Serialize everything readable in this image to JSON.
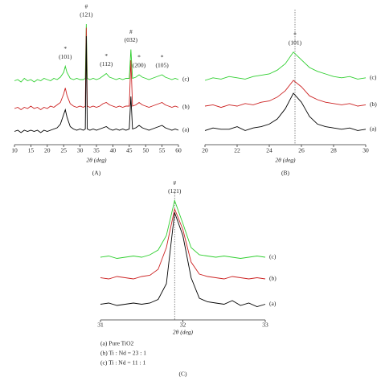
{
  "chart_data": [
    {
      "type": "line",
      "label": "(A)",
      "x_label": "2θ (deg)",
      "x": [
        10,
        11,
        12,
        13,
        14,
        15,
        16,
        17,
        18,
        19,
        20,
        21,
        22,
        23,
        24,
        25,
        25.5,
        26,
        27,
        28,
        29,
        30,
        31,
        31.6,
        31.9,
        32.2,
        33,
        34,
        35,
        36,
        37,
        38,
        39,
        40,
        41,
        42,
        43,
        44,
        45,
        45.5,
        46,
        47,
        48,
        49,
        50,
        51,
        52,
        53,
        54,
        55,
        56,
        57,
        58,
        59,
        60
      ],
      "series": [
        {
          "name": "(c)",
          "color": "#2fcf2f",
          "values": [
            53,
            54,
            52,
            55,
            53,
            54,
            52,
            54,
            53,
            55,
            54,
            53,
            55,
            54,
            56,
            60,
            65,
            60,
            55,
            54,
            55,
            54,
            54,
            55,
            100,
            55,
            54,
            55,
            54,
            55,
            57,
            59,
            56,
            55,
            54,
            55,
            54,
            55,
            55,
            79,
            55,
            56,
            58,
            56,
            55,
            54,
            55,
            56,
            57,
            58,
            56,
            55,
            54,
            55,
            54
          ]
        },
        {
          "name": "(b)",
          "color": "#cc2222",
          "values": [
            30,
            31,
            29,
            31,
            30,
            32,
            30,
            31,
            29,
            31,
            30,
            32,
            31,
            33,
            35,
            42,
            47,
            41,
            34,
            32,
            31,
            32,
            31,
            32,
            97,
            32,
            31,
            32,
            31,
            32,
            34,
            35,
            33,
            32,
            31,
            32,
            31,
            32,
            32,
            70,
            32,
            33,
            35,
            33,
            32,
            31,
            32,
            33,
            34,
            35,
            33,
            32,
            31,
            32,
            31
          ]
        },
        {
          "name": "(a)",
          "color": "#000000",
          "values": [
            11,
            12,
            10,
            12,
            11,
            12,
            11,
            12,
            10,
            12,
            11,
            12,
            13,
            14,
            17,
            25,
            29,
            23,
            15,
            13,
            12,
            13,
            12,
            13,
            90,
            13,
            12,
            13,
            12,
            13,
            14,
            15,
            13,
            12,
            13,
            12,
            13,
            12,
            13,
            40,
            13,
            14,
            16,
            14,
            13,
            12,
            13,
            14,
            15,
            16,
            14,
            13,
            12,
            13,
            12
          ]
        }
      ],
      "annotations": [
        {
          "x": 25.5,
          "marker": "*",
          "text": "(101)"
        },
        {
          "x": 31.9,
          "marker": "#",
          "text": "(121)"
        },
        {
          "x": 38,
          "marker": "*",
          "text": "(112)"
        },
        {
          "x": 45.5,
          "marker": "#",
          "text": "(032)"
        },
        {
          "x": 48,
          "marker": "*",
          "text": "(200)"
        },
        {
          "x": 55,
          "marker": "*",
          "text": "(105)"
        }
      ],
      "xlim": [
        10,
        60
      ],
      "xticks": [
        10,
        15,
        20,
        25,
        30,
        35,
        40,
        45,
        50,
        55,
        60
      ],
      "ylim": [
        0,
        100
      ]
    },
    {
      "type": "line",
      "label": "(B)",
      "x_label": "2θ (deg)",
      "x": [
        20,
        20.5,
        21,
        21.5,
        22,
        22.5,
        23,
        23.5,
        24,
        24.5,
        25,
        25.5,
        26,
        26.5,
        27,
        27.5,
        28,
        28.5,
        29,
        29.5,
        30
      ],
      "series": [
        {
          "name": "(c)",
          "color": "#2fcf2f",
          "values": [
            50,
            52,
            51,
            53,
            52,
            51,
            53,
            54,
            55,
            58,
            63,
            72,
            66,
            60,
            57,
            55,
            53,
            52,
            53,
            51,
            52
          ]
        },
        {
          "name": "(b)",
          "color": "#cc2222",
          "values": [
            30,
            31,
            29,
            31,
            30,
            32,
            31,
            33,
            34,
            37,
            42,
            50,
            45,
            38,
            35,
            33,
            32,
            31,
            32,
            30,
            31
          ]
        },
        {
          "name": "(a)",
          "color": "#000000",
          "values": [
            11,
            13,
            12,
            12,
            14,
            11,
            13,
            14,
            16,
            20,
            28,
            40,
            33,
            22,
            16,
            14,
            13,
            12,
            13,
            11,
            12
          ]
        }
      ],
      "annotations": [
        {
          "x": 25.6,
          "marker": "*",
          "text": "(101)"
        }
      ],
      "refline": 25.6,
      "xlim": [
        20,
        30
      ],
      "xticks": [
        20,
        22,
        24,
        26,
        28,
        30
      ],
      "ylim": [
        0,
        100
      ]
    },
    {
      "type": "line",
      "label": "(C)",
      "x_label": "2θ (deg)",
      "x": [
        31,
        31.1,
        31.2,
        31.3,
        31.4,
        31.5,
        31.6,
        31.7,
        31.8,
        31.9,
        32,
        32.1,
        32.2,
        32.3,
        32.4,
        32.5,
        32.6,
        32.7,
        32.8,
        32.9,
        33
      ],
      "series": [
        {
          "name": "(c)",
          "color": "#2fcf2f",
          "values": [
            52,
            53,
            51,
            52,
            53,
            52,
            54,
            58,
            70,
            99,
            80,
            60,
            54,
            53,
            52,
            53,
            52,
            51,
            52,
            53,
            52
          ]
        },
        {
          "name": "(b)",
          "color": "#cc2222",
          "values": [
            35,
            34,
            36,
            35,
            34,
            36,
            37,
            42,
            60,
            92,
            75,
            48,
            38,
            36,
            35,
            34,
            36,
            35,
            34,
            35,
            34
          ]
        },
        {
          "name": "(a)",
          "color": "#000000",
          "values": [
            13,
            14,
            12,
            13,
            14,
            13,
            14,
            17,
            30,
            89,
            70,
            35,
            18,
            15,
            14,
            13,
            16,
            12,
            14,
            11,
            13
          ]
        }
      ],
      "annotations": [
        {
          "x": 31.9,
          "marker": "#",
          "text": "(121)"
        }
      ],
      "refline": 31.9,
      "notes": [
        "(a) Pure TiO2",
        "(b) Ti : Nd = 23 : 1",
        "(c) Ti : Nd = 11 : 1"
      ],
      "xlim": [
        31,
        33
      ],
      "xticks": [
        31,
        32,
        33
      ],
      "ylim": [
        0,
        100
      ]
    }
  ]
}
